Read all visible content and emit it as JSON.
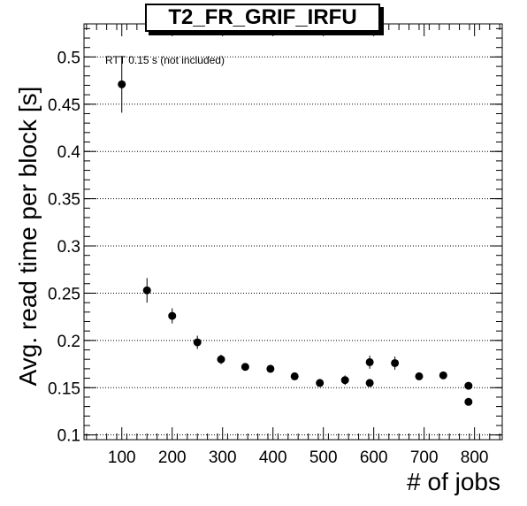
{
  "chart_data": {
    "type": "scatter",
    "title": "T2_FR_GRIF_IRFU",
    "xlabel": "# of jobs",
    "ylabel": "Avg. read time per block [s]",
    "annotation": "RTT 0.15 s (not included)",
    "xlim": [
      25,
      855
    ],
    "ylim": [
      0.095,
      0.535
    ],
    "x_ticks": [
      100,
      200,
      300,
      400,
      500,
      600,
      700,
      800
    ],
    "y_ticks": [
      0.1,
      0.15,
      0.2,
      0.25,
      0.3,
      0.35,
      0.4,
      0.45,
      0.5
    ],
    "y_tick_labels": [
      "0.1",
      "0.15",
      "0.2",
      "0.25",
      "0.3",
      "0.35",
      "0.4",
      "0.45",
      "0.5"
    ],
    "grid": "horizontal dotted",
    "points": [
      {
        "x": 100,
        "y": 0.471,
        "err": 0.03
      },
      {
        "x": 150,
        "y": 0.253,
        "err": 0.013
      },
      {
        "x": 200,
        "y": 0.226,
        "err": 0.008
      },
      {
        "x": 250,
        "y": 0.198,
        "err": 0.007
      },
      {
        "x": 297,
        "y": 0.18,
        "err": 0.005
      },
      {
        "x": 345,
        "y": 0.172,
        "err": 0.004
      },
      {
        "x": 395,
        "y": 0.17,
        "err": 0.004
      },
      {
        "x": 443,
        "y": 0.162,
        "err": 0.003
      },
      {
        "x": 493,
        "y": 0.155,
        "err": 0.003
      },
      {
        "x": 543,
        "y": 0.158,
        "err": 0.005
      },
      {
        "x": 592,
        "y": 0.177,
        "err": 0.007
      },
      {
        "x": 592,
        "y": 0.155,
        "err": 0.003
      },
      {
        "x": 642,
        "y": 0.176,
        "err": 0.007
      },
      {
        "x": 690,
        "y": 0.162,
        "err": 0.003
      },
      {
        "x": 738,
        "y": 0.163,
        "err": 0.003
      },
      {
        "x": 788,
        "y": 0.152,
        "err": 0.003
      },
      {
        "x": 788,
        "y": 0.135,
        "err": 0.003
      }
    ]
  }
}
